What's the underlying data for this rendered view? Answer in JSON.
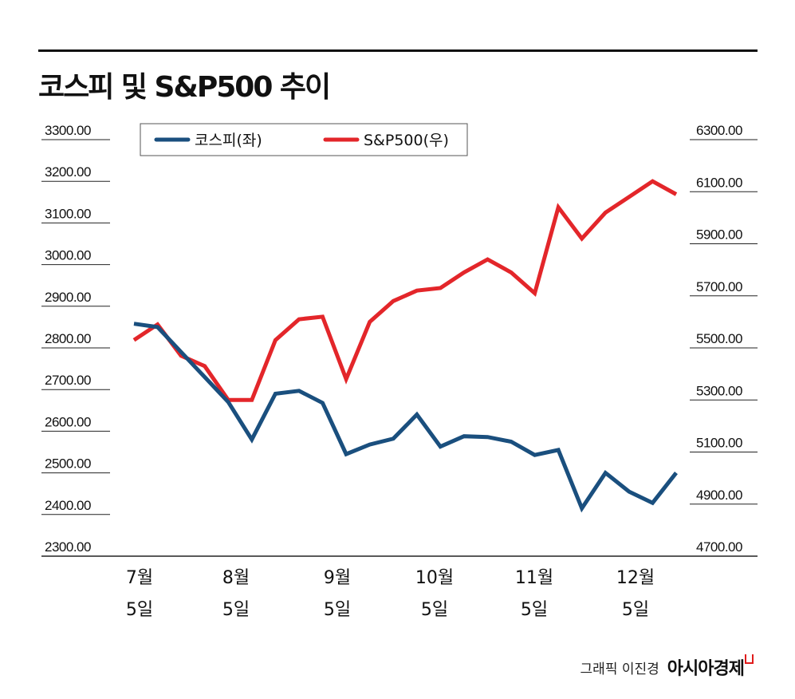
{
  "title": "코스피 및 S&P500 추이",
  "credit": {
    "text": "그래픽 이진경",
    "brand": "아시아경제"
  },
  "colors": {
    "kospi": "#1a4f7e",
    "sp500": "#e3262a",
    "grid": "#222222"
  },
  "chart_data": {
    "type": "line",
    "left_axis": {
      "ticks": [
        "3300.00",
        "3200.00",
        "3100.00",
        "3000.00",
        "2900.00",
        "2800.00",
        "2700.00",
        "2600.00",
        "2500.00",
        "2400.00",
        "2300.00"
      ],
      "ylim": [
        2300,
        3300
      ]
    },
    "right_axis": {
      "ticks": [
        "6300.00",
        "6100.00",
        "5900.00",
        "5700.00",
        "5500.00",
        "5300.00",
        "5100.00",
        "4900.00",
        "4700.00"
      ],
      "ylim": [
        4700,
        6300
      ]
    },
    "x_labels": [
      {
        "month": "7월",
        "day": "5일"
      },
      {
        "month": "8월",
        "day": "5일"
      },
      {
        "month": "9월",
        "day": "5일"
      },
      {
        "month": "10월",
        "day": "5일"
      },
      {
        "month": "11월",
        "day": "5일"
      },
      {
        "month": "12월",
        "day": "5일"
      }
    ],
    "legend": {
      "position": "top",
      "items": [
        "코스피(좌)",
        "S&P500(우)"
      ]
    },
    "series": [
      {
        "name": "코스피(좌)",
        "axis": "left",
        "values": [
          2858,
          2850,
          2790,
          2730,
          2670,
          2580,
          2690,
          2697,
          2668,
          2545,
          2568,
          2582,
          2640,
          2563,
          2588,
          2586,
          2575,
          2543,
          2555,
          2415,
          2500,
          2455,
          2428,
          2500
        ]
      },
      {
        "name": "S&P500(우)",
        "axis": "right",
        "values": [
          5530,
          5590,
          5470,
          5430,
          5300,
          5300,
          5530,
          5610,
          5620,
          5380,
          5600,
          5680,
          5720,
          5730,
          5790,
          5840,
          5790,
          5710,
          6040,
          5920,
          6020,
          6080,
          6140,
          6090
        ]
      }
    ]
  }
}
